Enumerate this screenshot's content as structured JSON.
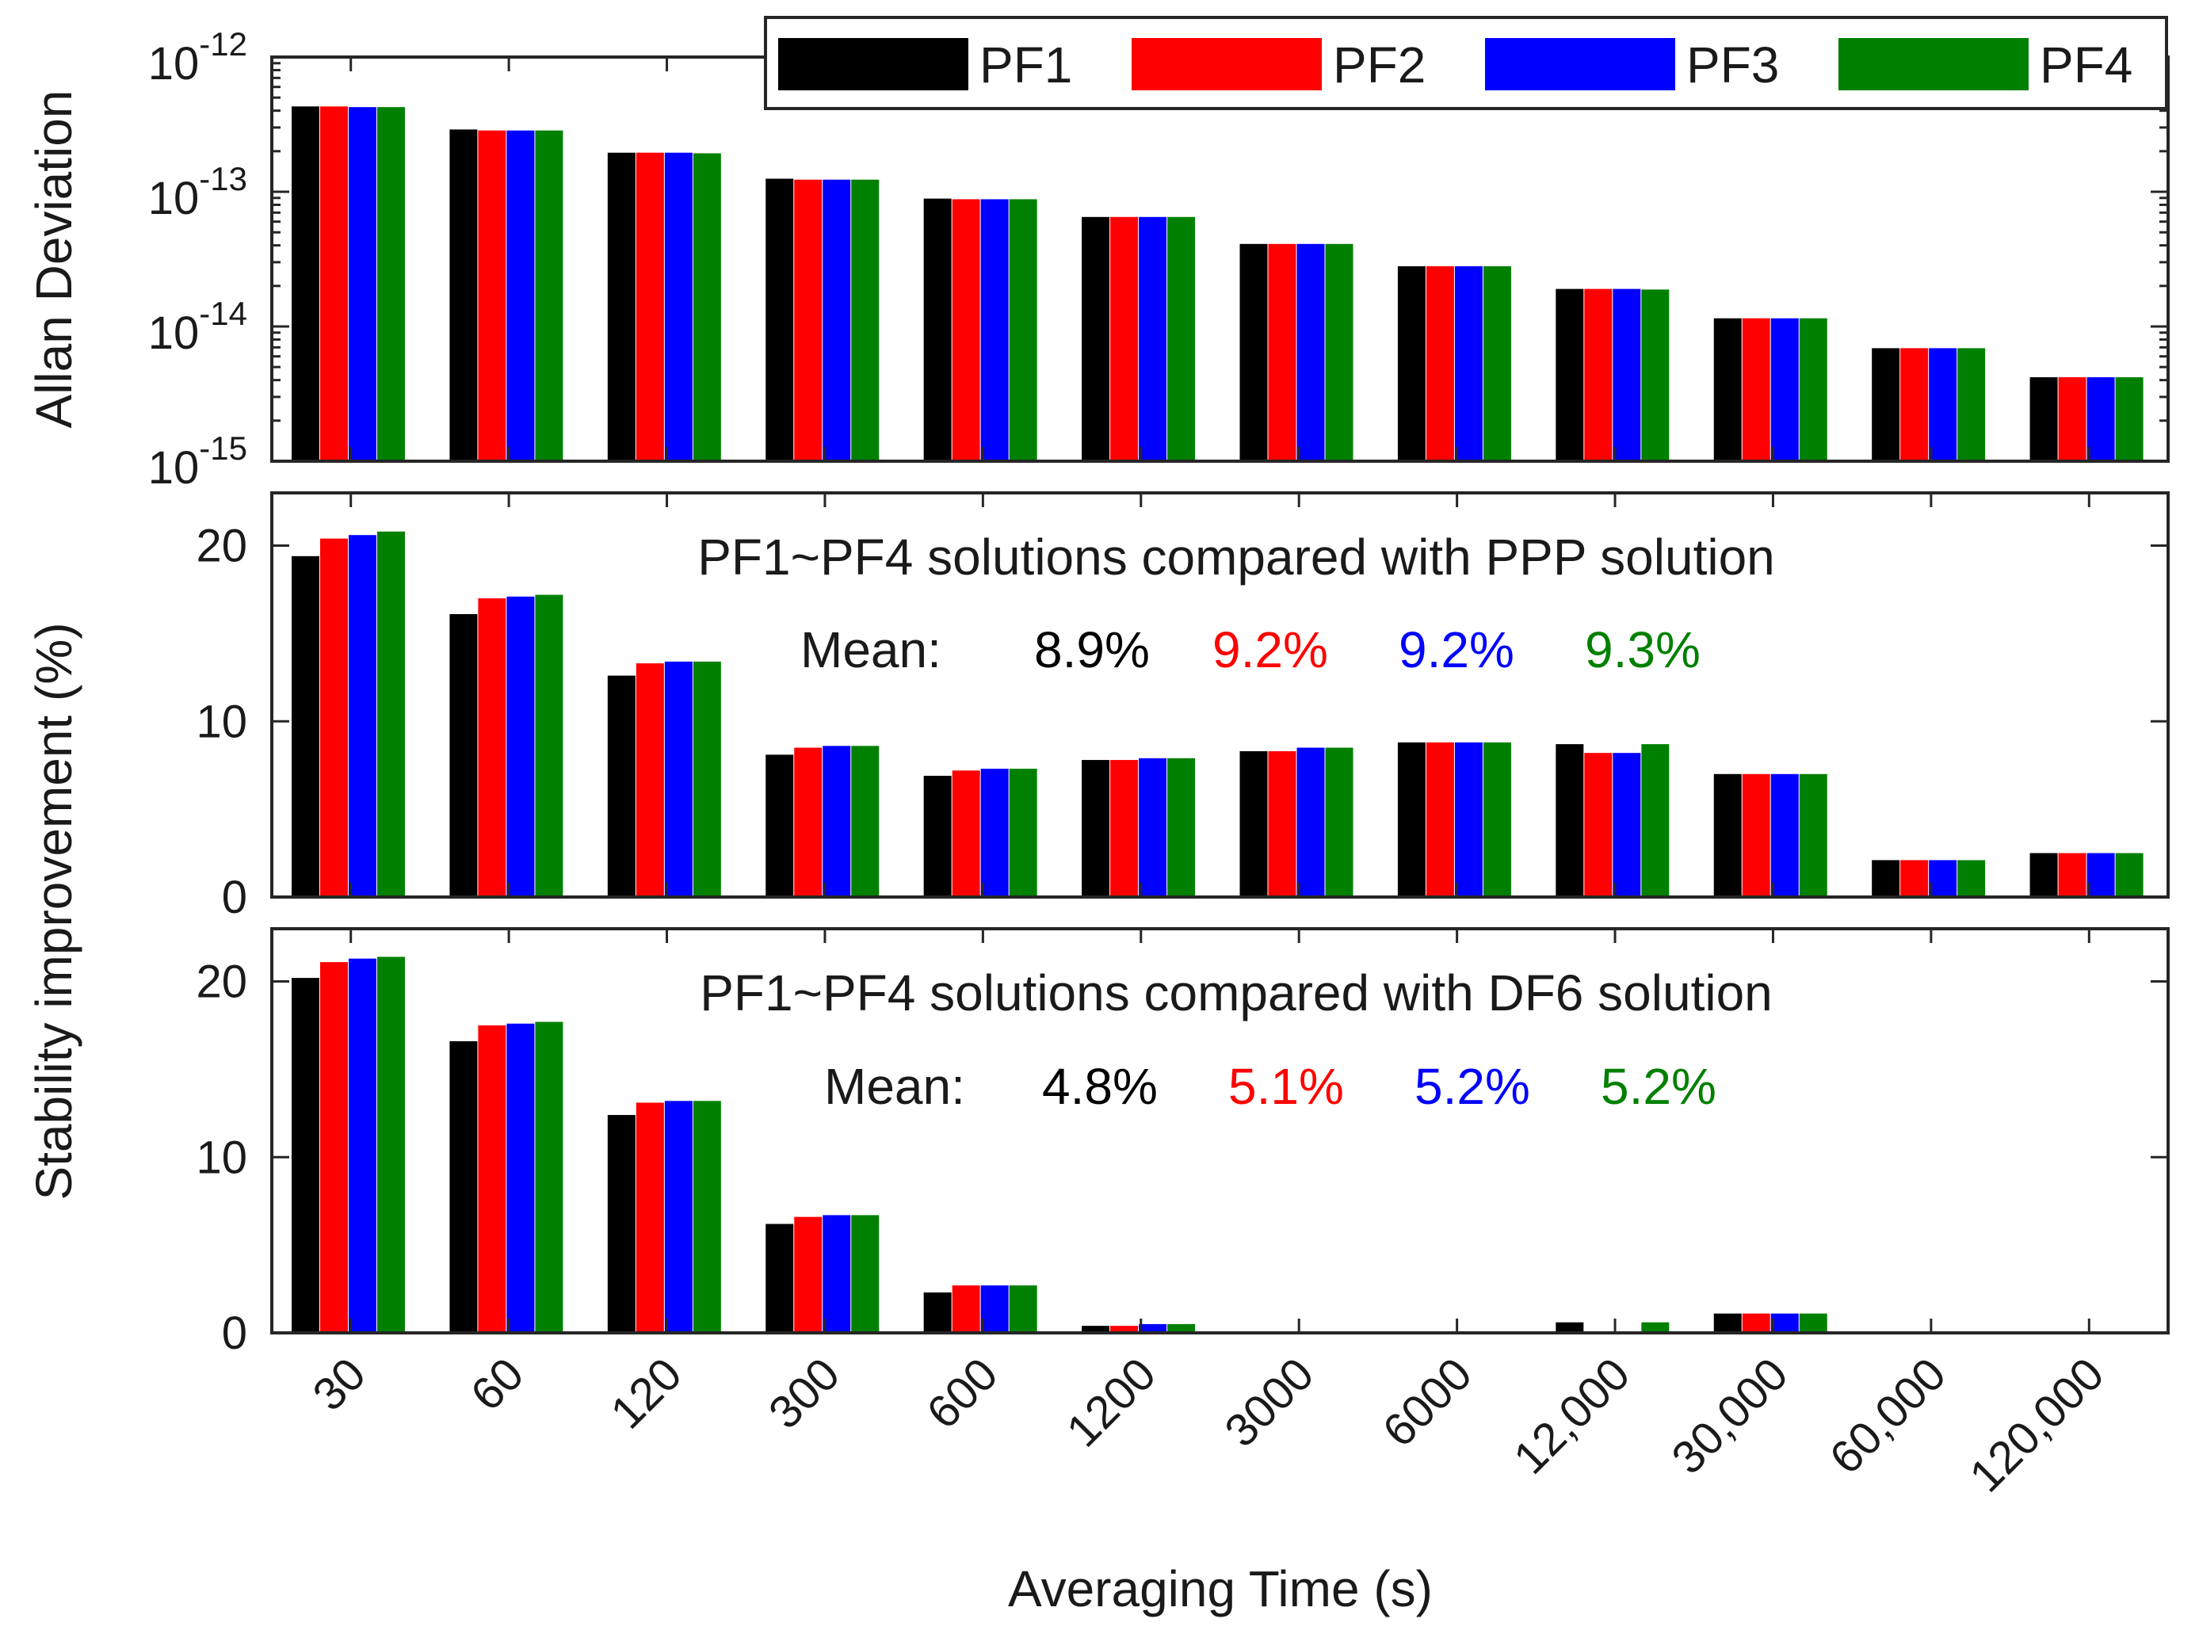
{
  "chart_data": [
    {
      "type": "bar",
      "panel": "top",
      "yscale": "log",
      "ylabel": "Allan Deviation",
      "ylim": [
        1e-15,
        1e-12
      ],
      "yticks": [
        {
          "base": "10",
          "exp": "-12"
        },
        {
          "base": "10",
          "exp": "-13"
        },
        {
          "base": "10",
          "exp": "-14"
        },
        {
          "base": "10",
          "exp": "-15"
        }
      ],
      "categories": [
        "30",
        "60",
        "120",
        "300",
        "600",
        "1200",
        "3000",
        "6000",
        "12,000",
        "30,000",
        "60,000",
        "120,000"
      ],
      "series": [
        {
          "name": "PF1",
          "color": "#000000",
          "values": [
            4.3e-13,
            2.9e-13,
            1.95e-13,
            1.25e-13,
            8.9e-14,
            6.5e-14,
            4.1e-14,
            2.8e-14,
            1.9e-14,
            1.15e-14,
            6.9e-15,
            4.2e-15
          ]
        },
        {
          "name": "PF2",
          "color": "#ff0000",
          "values": [
            4.3e-13,
            2.85e-13,
            1.95e-13,
            1.23e-13,
            8.8e-14,
            6.5e-14,
            4.1e-14,
            2.8e-14,
            1.9e-14,
            1.15e-14,
            6.9e-15,
            4.2e-15
          ]
        },
        {
          "name": "PF3",
          "color": "#0000ff",
          "values": [
            4.25e-13,
            2.85e-13,
            1.95e-13,
            1.23e-13,
            8.8e-14,
            6.5e-14,
            4.1e-14,
            2.8e-14,
            1.9e-14,
            1.15e-14,
            6.9e-15,
            4.2e-15
          ]
        },
        {
          "name": "PF4",
          "color": "#008000",
          "values": [
            4.25e-13,
            2.85e-13,
            1.93e-13,
            1.23e-13,
            8.8e-14,
            6.5e-14,
            4.1e-14,
            2.8e-14,
            1.88e-14,
            1.15e-14,
            6.9e-15,
            4.2e-15
          ]
        }
      ],
      "legend": {
        "position": "top-right",
        "entries": [
          "PF1",
          "PF2",
          "PF3",
          "PF4"
        ]
      }
    },
    {
      "type": "bar",
      "panel": "middle",
      "yscale": "linear",
      "ylim": [
        0,
        23
      ],
      "yticks": [
        "0",
        "10",
        "20"
      ],
      "title": "PF1~PF4 solutions compared with PPP solution",
      "mean_label": "Mean:",
      "means": [
        "8.9%",
        "9.2%",
        "9.2%",
        "9.3%"
      ],
      "categories": [
        "30",
        "60",
        "120",
        "300",
        "600",
        "1200",
        "3000",
        "6000",
        "12,000",
        "30,000",
        "60,000",
        "120,000"
      ],
      "series": [
        {
          "name": "PF1",
          "color": "#000000",
          "values": [
            19.4,
            16.1,
            12.6,
            8.1,
            6.9,
            7.8,
            8.3,
            8.8,
            8.7,
            7.0,
            2.1,
            2.5
          ]
        },
        {
          "name": "PF2",
          "color": "#ff0000",
          "values": [
            20.4,
            17.0,
            13.3,
            8.5,
            7.2,
            7.8,
            8.3,
            8.8,
            8.2,
            7.0,
            2.1,
            2.5
          ]
        },
        {
          "name": "PF3",
          "color": "#0000ff",
          "values": [
            20.6,
            17.1,
            13.4,
            8.6,
            7.3,
            7.9,
            8.5,
            8.8,
            8.2,
            7.0,
            2.1,
            2.5
          ]
        },
        {
          "name": "PF4",
          "color": "#008000",
          "values": [
            20.8,
            17.2,
            13.4,
            8.6,
            7.3,
            7.9,
            8.5,
            8.8,
            8.7,
            7.0,
            2.1,
            2.5
          ]
        }
      ]
    },
    {
      "type": "bar",
      "panel": "bottom",
      "yscale": "linear",
      "ylim": [
        0,
        23
      ],
      "yticks": [
        "0",
        "10",
        "20"
      ],
      "title": "PF1~PF4 solutions compared with DF6 solution",
      "mean_label": "Mean:",
      "means": [
        "4.8%",
        "5.1%",
        "5.2%",
        "5.2%"
      ],
      "categories": [
        "30",
        "60",
        "120",
        "300",
        "600",
        "1200",
        "3000",
        "6000",
        "12,000",
        "30,000",
        "60,000",
        "120,000"
      ],
      "series": [
        {
          "name": "PF1",
          "color": "#000000",
          "values": [
            20.2,
            16.6,
            12.4,
            6.2,
            2.3,
            0.4,
            0,
            0,
            0.6,
            1.1,
            0,
            0
          ]
        },
        {
          "name": "PF2",
          "color": "#ff0000",
          "values": [
            21.1,
            17.5,
            13.1,
            6.6,
            2.7,
            0.4,
            0,
            0,
            0,
            1.1,
            0,
            0
          ]
        },
        {
          "name": "PF3",
          "color": "#0000ff",
          "values": [
            21.3,
            17.6,
            13.2,
            6.7,
            2.7,
            0.5,
            0,
            0,
            0,
            1.1,
            0,
            0
          ]
        },
        {
          "name": "PF4",
          "color": "#008000",
          "values": [
            21.4,
            17.7,
            13.2,
            6.7,
            2.7,
            0.5,
            0,
            0,
            0.6,
            1.1,
            0,
            0
          ]
        }
      ]
    }
  ],
  "shared": {
    "xlabel": "Averaging Time (s)",
    "ylabel": "Stability improvement (%)"
  }
}
